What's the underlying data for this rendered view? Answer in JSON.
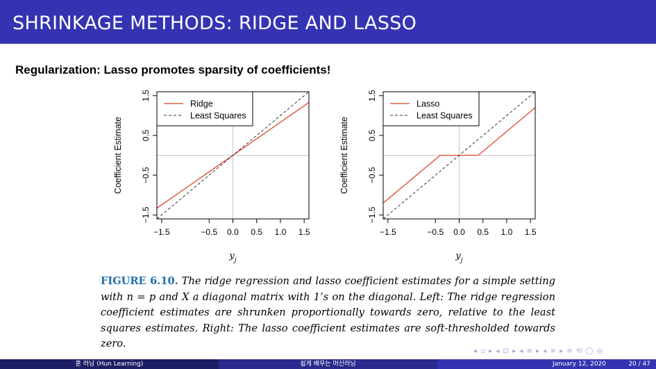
{
  "header": {
    "title": "SHRINKAGE METHODS: RIDGE AND LASSO"
  },
  "subtitle": "Regularization: Lasso promotes sparsity of coefficients!",
  "colors": {
    "header_bg": "#3434b2",
    "estimate_line": "#e0432b",
    "least_squares_line": "#333333",
    "caption_label": "#1f6fae"
  },
  "chart_data": [
    {
      "type": "line",
      "ylabel": "Coefficient Estimate",
      "xlabel": "y_j",
      "xlim": [
        -1.6,
        1.6
      ],
      "ylim": [
        -1.6,
        1.6
      ],
      "xticks": [
        "−1.5",
        "−0.5",
        "0.0",
        "0.5",
        "1.0",
        "1.5"
      ],
      "xtick_values": [
        -1.5,
        -0.5,
        0.0,
        0.5,
        1.0,
        1.5
      ],
      "yticks": [
        "−1.5",
        "−0.5",
        "0.5",
        "1.5"
      ],
      "ytick_values": [
        -1.5,
        -0.5,
        0.5,
        1.5
      ],
      "grid": "reference lines at x = 0 and y = 0",
      "legend_position": "top-left",
      "series": [
        {
          "name": "Ridge",
          "style": "solid",
          "color": "#e0432b",
          "x": [
            -1.6,
            1.6
          ],
          "y": [
            -1.33,
            1.33
          ]
        },
        {
          "name": "Least Squares",
          "style": "dashed",
          "color": "#333333",
          "x": [
            -1.6,
            1.6
          ],
          "y": [
            -1.6,
            1.6
          ]
        }
      ]
    },
    {
      "type": "line",
      "ylabel": "Coefficient Estimate",
      "xlabel": "y_j",
      "xlim": [
        -1.6,
        1.6
      ],
      "ylim": [
        -1.6,
        1.6
      ],
      "xticks": [
        "−1.5",
        "−0.5",
        "0.0",
        "0.5",
        "1.0",
        "1.5"
      ],
      "xtick_values": [
        -1.5,
        -0.5,
        0.0,
        0.5,
        1.0,
        1.5
      ],
      "yticks": [
        "−1.5",
        "−0.5",
        "0.5",
        "1.5"
      ],
      "ytick_values": [
        -1.5,
        -0.5,
        0.5,
        1.5
      ],
      "grid": "reference lines at x = 0 and y = 0",
      "legend_position": "top-left",
      "series": [
        {
          "name": "Lasso",
          "style": "solid",
          "color": "#e0432b",
          "x": [
            -1.6,
            -0.4,
            0.4,
            1.6
          ],
          "y": [
            -1.2,
            0.0,
            0.0,
            1.2
          ]
        },
        {
          "name": "Least Squares",
          "style": "dashed",
          "color": "#333333",
          "x": [
            -1.6,
            1.6
          ],
          "y": [
            -1.6,
            1.6
          ]
        }
      ]
    }
  ],
  "caption": {
    "label": "FIGURE 6.10.",
    "body": "The ridge regression and lasso coefficient estimates for a simple setting with n = p and X a diagonal matrix with 1’s on the diagonal. Left: The ridge regression coefficient estimates are shrunken proportionally towards zero, relative to the least squares estimates. Right: The lasso coefficient estimates are soft-thresholded towards zero."
  },
  "nav_symbols": "◂ ▫ ▸ ◂ ⊡ ▸ ◂ ≡ ▸ ◂ ≡ ▸ ≡ ⟲ ◯ ◎",
  "footer": {
    "left": "훈 러닝 (Hun Learning)",
    "center": "쉽게 배우는 머신러닝",
    "date": "January 12, 2020",
    "page": "20 / 47"
  }
}
